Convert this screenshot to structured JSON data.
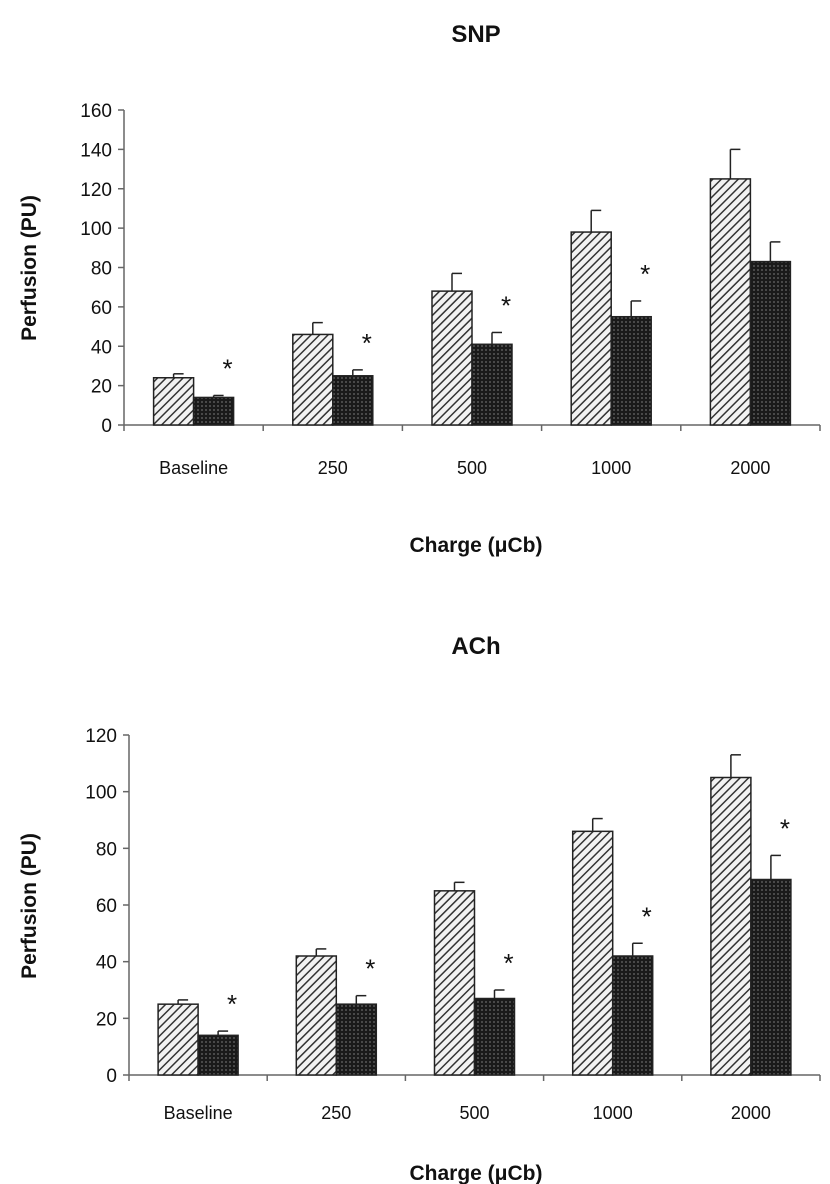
{
  "chart_data": [
    {
      "type": "bar",
      "title": "SNP",
      "xlabel": "Charge (μCb)",
      "ylabel": "Perfusion (PU)",
      "ylim": [
        0,
        160
      ],
      "yticks": [
        0,
        20,
        40,
        60,
        80,
        100,
        120,
        140,
        160
      ],
      "categories": [
        "Baseline",
        "250",
        "500",
        "1000",
        "2000"
      ],
      "series": [
        {
          "pattern": "diagonal-hatch",
          "color": "#555555",
          "values": [
            24,
            46,
            68,
            98,
            125
          ],
          "errors": [
            2,
            6,
            9,
            11,
            15
          ]
        },
        {
          "pattern": "dense-dots",
          "color": "#222222",
          "values": [
            14,
            25,
            41,
            55,
            83
          ],
          "errors": [
            1,
            3,
            6,
            8,
            10
          ]
        }
      ],
      "annotations": [
        "*",
        "*",
        "*",
        "*"
      ],
      "annotation_categories": [
        0,
        1,
        2,
        3
      ],
      "grid": false
    },
    {
      "type": "bar",
      "title": "ACh",
      "xlabel": "Charge (μCb)",
      "ylabel": "Perfusion (PU)",
      "ylim": [
        0,
        120
      ],
      "yticks": [
        0,
        20,
        40,
        60,
        80,
        100,
        120
      ],
      "categories": [
        "Baseline",
        "250",
        "500",
        "1000",
        "2000"
      ],
      "series": [
        {
          "pattern": "diagonal-hatch",
          "color": "#555555",
          "values": [
            25,
            42,
            65,
            86,
            105
          ],
          "errors": [
            1.5,
            2.5,
            3,
            4.5,
            8
          ]
        },
        {
          "pattern": "dense-dots",
          "color": "#222222",
          "values": [
            14,
            25,
            27,
            42,
            69
          ],
          "errors": [
            1.5,
            3,
            3,
            4.5,
            8.5
          ]
        }
      ],
      "annotations": [
        "*",
        "*",
        "*",
        "*",
        "*"
      ],
      "annotation_categories": [
        0,
        1,
        2,
        3,
        4
      ],
      "grid": false
    }
  ]
}
